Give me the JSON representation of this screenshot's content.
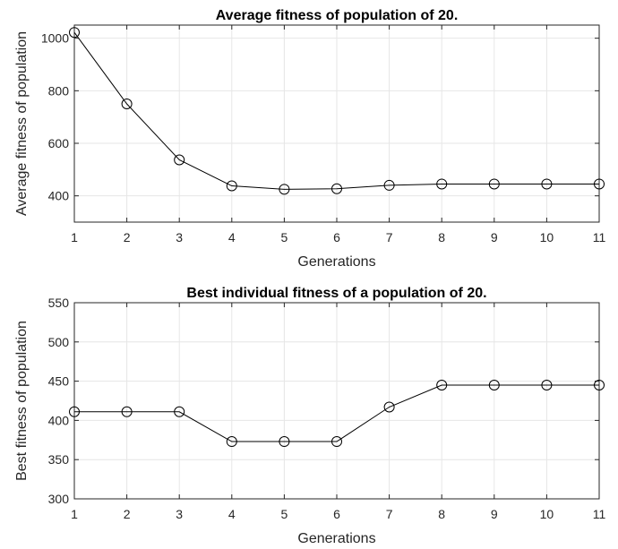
{
  "chart_data": [
    {
      "type": "line",
      "title": "Average fitness of population of 20.",
      "xlabel": "Generations",
      "ylabel": "Average fitness of population",
      "x": [
        1,
        2,
        3,
        4,
        5,
        6,
        7,
        8,
        9,
        10,
        11
      ],
      "values": [
        1022,
        750,
        537,
        438,
        425,
        427,
        440,
        445,
        445,
        445,
        445
      ],
      "xlim": [
        1,
        11
      ],
      "ylim": [
        300,
        1050
      ],
      "xticks": [
        "1",
        "2",
        "3",
        "4",
        "5",
        "6",
        "7",
        "8",
        "9",
        "10",
        "11"
      ],
      "yticks": [
        "400",
        "600",
        "800",
        "1000"
      ],
      "ytick_values": [
        400,
        600,
        800,
        1000
      ],
      "grid": true,
      "marker": "circle",
      "line_color": "#000000"
    },
    {
      "type": "line",
      "title": "Best individual fitness of a population of 20.",
      "xlabel": "Generations",
      "ylabel": "Best fitness of population",
      "x": [
        1,
        2,
        3,
        4,
        5,
        6,
        7,
        8,
        9,
        10,
        11
      ],
      "values": [
        411,
        411,
        411,
        373,
        373,
        373,
        417,
        445,
        445,
        445,
        445
      ],
      "xlim": [
        1,
        11
      ],
      "ylim": [
        300,
        550
      ],
      "xticks": [
        "1",
        "2",
        "3",
        "4",
        "5",
        "6",
        "7",
        "8",
        "9",
        "10",
        "11"
      ],
      "yticks": [
        "300",
        "350",
        "400",
        "450",
        "500",
        "550"
      ],
      "ytick_values": [
        300,
        350,
        400,
        450,
        500,
        550
      ],
      "grid": true,
      "marker": "circle",
      "line_color": "#000000"
    }
  ]
}
